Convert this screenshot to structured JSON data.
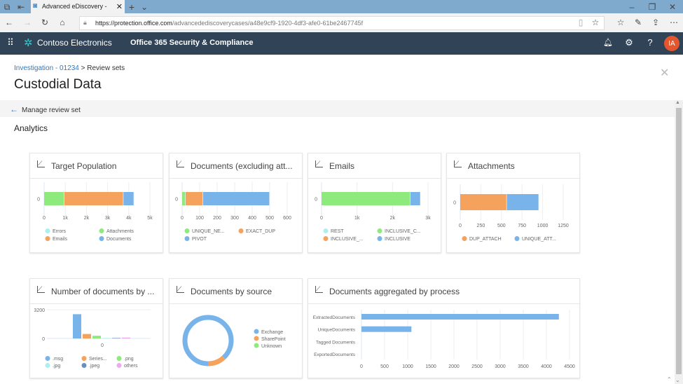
{
  "browser": {
    "tab_title": "Advanced eDiscovery -",
    "url_host": "https://protection.office.com",
    "url_path": "/advancedediscoverycases/a48e9cf9-1920-4df3-afe0-61be2467745f"
  },
  "header": {
    "brand": "Contoso Electronics",
    "app": "Office 365 Security & Compliance",
    "avatar": "IA",
    "accent": "#e4572e"
  },
  "breadcrumb": {
    "link": "Investigation - 01234",
    "sep": ">",
    "current": "Review sets"
  },
  "page_title": "Custodial Data",
  "manage_label": "Manage review set",
  "section_title": "Analytics",
  "chart_data": [
    {
      "type": "bar",
      "orientation": "horizontal",
      "stacked": true,
      "title": "Target Population",
      "categories": [
        "0"
      ],
      "xlim": [
        0,
        5000
      ],
      "ticks": [
        "0",
        "1k",
        "2k",
        "3k",
        "4k",
        "5k"
      ],
      "series": [
        {
          "name": "Errors",
          "values": [
            0
          ],
          "color": "#aeeef0"
        },
        {
          "name": "Attachments",
          "values": [
            950
          ],
          "color": "#8eea7c"
        },
        {
          "name": "Emails",
          "values": [
            2800
          ],
          "color": "#f5a35c"
        },
        {
          "name": "Documents",
          "values": [
            500
          ],
          "color": "#78b4ea"
        }
      ]
    },
    {
      "type": "bar",
      "orientation": "horizontal",
      "stacked": true,
      "title": "Documents (excluding att...",
      "categories": [
        "0"
      ],
      "xlim": [
        0,
        600
      ],
      "ticks": [
        "0",
        "100",
        "200",
        "300",
        "400",
        "500",
        "600"
      ],
      "series": [
        {
          "name": "UNIQUE_NE...",
          "values": [
            20
          ],
          "color": "#8eea7c"
        },
        {
          "name": "EXACT_DUP",
          "values": [
            100
          ],
          "color": "#f5a35c"
        },
        {
          "name": "PIVOT",
          "values": [
            380
          ],
          "color": "#78b4ea"
        }
      ]
    },
    {
      "type": "bar",
      "orientation": "horizontal",
      "stacked": true,
      "title": "Emails",
      "categories": [
        "0"
      ],
      "xlim": [
        0,
        3000
      ],
      "ticks": [
        "0",
        "1k",
        "2k",
        "3k"
      ],
      "series": [
        {
          "name": "REST",
          "values": [
            0
          ],
          "color": "#aeeef0"
        },
        {
          "name": "INCLUSIVE_C...",
          "values": [
            2500
          ],
          "color": "#8eea7c"
        },
        {
          "name": "INCLUSIVE_...",
          "values": [
            0
          ],
          "color": "#f5a35c"
        },
        {
          "name": "INCLUSIVE",
          "values": [
            290
          ],
          "color": "#78b4ea"
        }
      ]
    },
    {
      "type": "bar",
      "orientation": "horizontal",
      "stacked": true,
      "title": "Attachments",
      "categories": [
        "0"
      ],
      "xlim": [
        0,
        1250
      ],
      "ticks": [
        "0",
        "250",
        "500",
        "750",
        "1000",
        "1250"
      ],
      "series": [
        {
          "name": "DUP_ATTACH",
          "values": [
            565
          ],
          "color": "#f5a35c"
        },
        {
          "name": "UNIQUE_ATT...",
          "values": [
            390
          ],
          "color": "#78b4ea"
        }
      ]
    },
    {
      "type": "bar",
      "title": "Number of documents by ...",
      "categories": [
        "0"
      ],
      "ylim": [
        0,
        3200
      ],
      "yticks": [
        "0",
        "3200"
      ],
      "series": [
        {
          "name": ".msg",
          "values": [
            2700
          ],
          "color": "#78b4ea"
        },
        {
          "name": "Series...",
          "values": [
            500
          ],
          "color": "#f5a35c"
        },
        {
          "name": ".png",
          "values": [
            300
          ],
          "color": "#8eea7c"
        },
        {
          "name": ".jpg",
          "values": [
            50
          ],
          "color": "#aeeef0"
        },
        {
          "name": ".jpeg",
          "values": [
            50
          ],
          "color": "#6a8fbf"
        },
        {
          "name": "others",
          "values": [
            100
          ],
          "color": "#eeaaee"
        }
      ]
    },
    {
      "type": "pie",
      "donut": true,
      "title": "Documents by source",
      "slices": [
        {
          "name": "Exchange",
          "value": 88,
          "color": "#78b4ea"
        },
        {
          "name": "SharePoint",
          "value": 12,
          "color": "#f5a35c"
        },
        {
          "name": "Unknown",
          "value": 0,
          "color": "#8eea7c"
        }
      ]
    },
    {
      "type": "bar",
      "orientation": "horizontal",
      "title": "Documents aggregated by process",
      "categories": [
        "ExtractedDocuments",
        "UniqueDocuments",
        "Tagged Documents",
        "ExportedDocuments"
      ],
      "values": [
        4270,
        1080,
        0,
        0
      ],
      "color": "#78b4ea",
      "xlim": [
        0,
        4500
      ],
      "ticks": [
        "0",
        "500",
        "1000",
        "1500",
        "2000",
        "2500",
        "3000",
        "3500",
        "4000",
        "4500"
      ]
    }
  ]
}
